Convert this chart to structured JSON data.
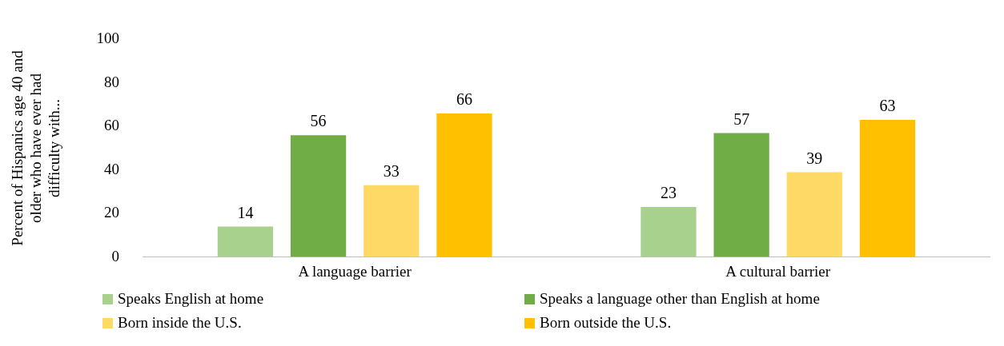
{
  "chart_data": {
    "type": "bar",
    "ylabel": "Percent of Hispanics age 40 and older who have ever had difficulty with...",
    "categories": [
      "A language barrier",
      "A cultural barrier"
    ],
    "series": [
      {
        "name": "Speaks English at home",
        "color": "#a9d18e",
        "values": [
          14,
          23
        ]
      },
      {
        "name": "Speaks a language other than English at home",
        "color": "#70ad47",
        "values": [
          56,
          57
        ]
      },
      {
        "name": "Born inside the U.S.",
        "color": "#ffd966",
        "values": [
          33,
          39
        ]
      },
      {
        "name": "Born outside the U.S.",
        "color": "#ffc000",
        "values": [
          66,
          63
        ]
      }
    ],
    "ylim": [
      0,
      100
    ],
    "yticks": [
      0,
      20,
      40,
      60,
      80,
      100
    ],
    "grid": false,
    "legend": "bottom",
    "data_labels": true
  }
}
